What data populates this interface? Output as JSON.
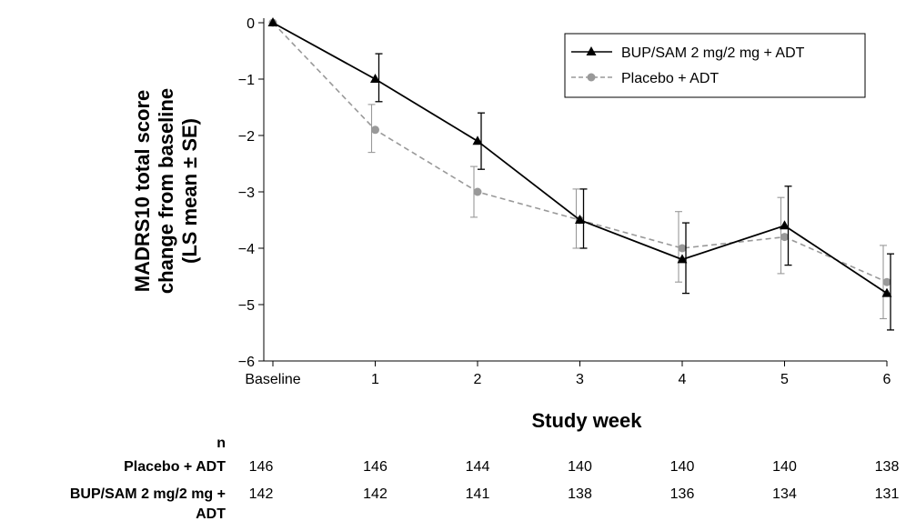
{
  "chart_data": {
    "type": "line",
    "title": "",
    "xlabel": "Study week",
    "ylabel_lines": [
      "MADRS10 total score",
      "change from baseline",
      "(LS mean ± SE)"
    ],
    "categories": [
      "Baseline",
      "1",
      "2",
      "3",
      "4",
      "5",
      "6"
    ],
    "y_ticks": [
      "0",
      "−1",
      "−2",
      "−3",
      "−4",
      "−5",
      "−6"
    ],
    "y_tick_values": [
      0,
      -1,
      -2,
      -3,
      -4,
      -5,
      -6
    ],
    "ylim": [
      -6,
      0
    ],
    "grid": false,
    "legend_position": "top-right",
    "series": [
      {
        "name": "BUP/SAM 2 mg/2 mg + ADT",
        "color": "#000000",
        "marker": "triangle",
        "line_style": "solid",
        "values": [
          0,
          -1.0,
          -2.1,
          -3.5,
          -4.2,
          -3.6,
          -4.8
        ],
        "se_lower": [
          0,
          -1.4,
          -2.6,
          -4.0,
          -4.8,
          -4.3,
          -5.45
        ],
        "se_upper": [
          0,
          -0.55,
          -1.6,
          -2.95,
          -3.55,
          -2.9,
          -4.1
        ]
      },
      {
        "name": "Placebo + ADT",
        "color": "#999999",
        "marker": "circle",
        "line_style": "dashed",
        "values": [
          0,
          -1.9,
          -3.0,
          -3.5,
          -4.0,
          -3.8,
          -4.6
        ],
        "se_lower": [
          0,
          -2.3,
          -3.45,
          -4.0,
          -4.6,
          -4.45,
          -5.25
        ],
        "se_upper": [
          0,
          -1.45,
          -2.55,
          -2.95,
          -3.35,
          -3.1,
          -3.95
        ]
      }
    ]
  },
  "n_table": {
    "header": "n",
    "rows": [
      {
        "label_lines": [
          "Placebo + ADT"
        ],
        "values": [
          "146",
          "146",
          "144",
          "140",
          "140",
          "140",
          "138"
        ]
      },
      {
        "label_lines": [
          "BUP/SAM 2 mg/2 mg +",
          "ADT"
        ],
        "values": [
          "142",
          "142",
          "141",
          "138",
          "136",
          "134",
          "131"
        ]
      }
    ]
  }
}
